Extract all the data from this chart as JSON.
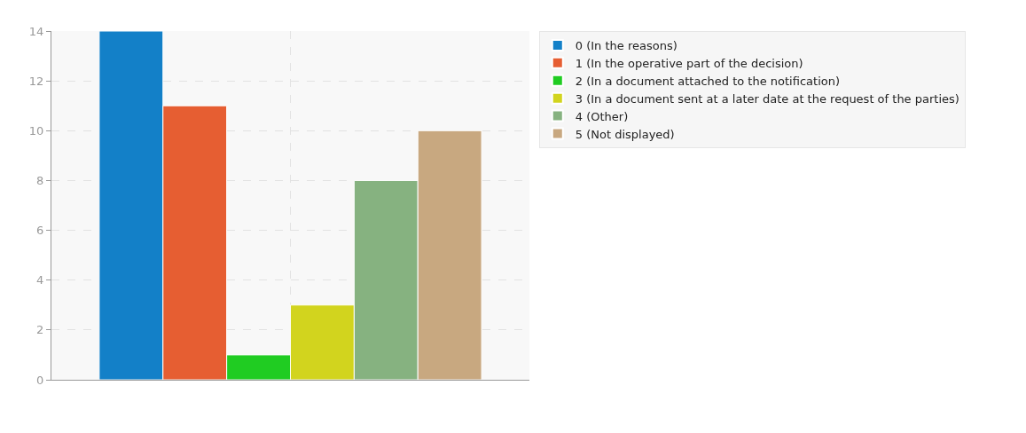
{
  "chart_data": {
    "type": "bar",
    "categories": [
      null
    ],
    "series": [
      {
        "name": "0 (In the reasons)",
        "color": "#1380c8",
        "values": [
          14
        ]
      },
      {
        "name": "1 (In the operative part of the decision)",
        "color": "#e65e32",
        "values": [
          11
        ]
      },
      {
        "name": "2 (In a document attached to the notification)",
        "color": "#20cc22",
        "values": [
          1
        ]
      },
      {
        "name": "3 (In a document sent at a later date at the request of the parties)",
        "color": "#d2d41e",
        "values": [
          3
        ]
      },
      {
        "name": "4 (Other)",
        "color": "#86b280",
        "values": [
          8
        ]
      },
      {
        "name": "5 (Not displayed)",
        "color": "#c8a880",
        "values": [
          10
        ]
      }
    ],
    "ylim": [
      0,
      14
    ],
    "yticks": [
      0,
      2,
      4,
      6,
      8,
      10,
      12,
      14
    ],
    "grid": true,
    "legend": "top right"
  }
}
